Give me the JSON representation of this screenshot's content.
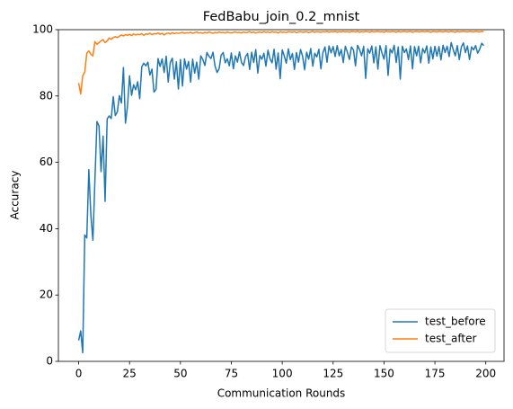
{
  "chart_data": {
    "type": "line",
    "title": "FedBabu_join_0.2_mnist",
    "x_label": "Communication Rounds",
    "y_label": "Accuracy",
    "x": [
      0,
      1,
      2,
      3,
      4,
      5,
      6,
      7,
      8,
      9,
      10,
      11,
      12,
      13,
      14,
      15,
      16,
      17,
      18,
      19,
      20,
      21,
      22,
      23,
      24,
      25,
      26,
      27,
      28,
      29,
      30,
      31,
      32,
      33,
      34,
      35,
      36,
      37,
      38,
      39,
      40,
      41,
      42,
      43,
      44,
      45,
      46,
      47,
      48,
      49,
      50,
      51,
      52,
      53,
      54,
      55,
      56,
      57,
      58,
      59,
      60,
      61,
      62,
      63,
      64,
      65,
      66,
      67,
      68,
      69,
      70,
      71,
      72,
      73,
      74,
      75,
      76,
      77,
      78,
      79,
      80,
      81,
      82,
      83,
      84,
      85,
      86,
      87,
      88,
      89,
      90,
      91,
      92,
      93,
      94,
      95,
      96,
      97,
      98,
      99,
      100,
      101,
      102,
      103,
      104,
      105,
      106,
      107,
      108,
      109,
      110,
      111,
      112,
      113,
      114,
      115,
      116,
      117,
      118,
      119,
      120,
      121,
      122,
      123,
      124,
      125,
      126,
      127,
      128,
      129,
      130,
      131,
      132,
      133,
      134,
      135,
      136,
      137,
      138,
      139,
      140,
      141,
      142,
      143,
      144,
      145,
      146,
      147,
      148,
      149,
      150,
      151,
      152,
      153,
      154,
      155,
      156,
      157,
      158,
      159,
      160,
      161,
      162,
      163,
      164,
      165,
      166,
      167,
      168,
      169,
      170,
      171,
      172,
      173,
      174,
      175,
      176,
      177,
      178,
      179,
      180,
      181,
      182,
      183,
      184,
      185,
      186,
      187,
      188,
      189,
      190,
      191,
      192,
      193,
      194,
      195,
      196,
      197,
      198,
      199
    ],
    "series": [
      {
        "name": "test_before",
        "color": "#1f77b4",
        "values": [
          6.3,
          9.2,
          2.6,
          38.1,
          37.2,
          57.8,
          44.1,
          36.5,
          54.9,
          72.3,
          71.0,
          57.2,
          67.9,
          48.2,
          73.1,
          74.0,
          73.2,
          79.8,
          74.1,
          75.2,
          80.1,
          77.9,
          88.6,
          71.8,
          77.0,
          86.1,
          80.2,
          83.4,
          81.9,
          84.3,
          79.2,
          88.8,
          89.9,
          89.1,
          90.2,
          86.3,
          88.1,
          81.2,
          82.0,
          91.3,
          88.9,
          91.2,
          87.1,
          92.0,
          84.2,
          90.1,
          91.4,
          85.1,
          90.3,
          82.1,
          91.0,
          83.0,
          91.2,
          88.1,
          90.4,
          84.2,
          91.1,
          86.9,
          90.2,
          85.1,
          92.1,
          91.0,
          89.2,
          93.1,
          92.0,
          91.3,
          93.2,
          89.0,
          87.1,
          88.2,
          92.3,
          93.1,
          90.0,
          91.2,
          89.1,
          93.0,
          88.2,
          92.1,
          90.2,
          93.3,
          90.1,
          89.2,
          91.9,
          92.8,
          88.0,
          93.2,
          90.1,
          94.0,
          86.9,
          92.2,
          91.1,
          92.9,
          89.0,
          93.8,
          91.2,
          90.0,
          94.1,
          88.1,
          93.0,
          85.2,
          93.9,
          92.1,
          89.9,
          94.2,
          91.0,
          92.8,
          88.0,
          93.1,
          90.2,
          94.0,
          92.0,
          87.9,
          93.2,
          91.1,
          94.3,
          89.0,
          92.9,
          91.8,
          94.1,
          88.2,
          93.1,
          94.8,
          90.2,
          95.1,
          93.0,
          94.9,
          91.9,
          95.2,
          92.1,
          94.0,
          90.1,
          95.0,
          93.2,
          91.0,
          94.8,
          93.9,
          89.1,
          95.3,
          94.0,
          92.1,
          95.0,
          85.3,
          94.2,
          92.9,
          95.1,
          90.0,
          94.8,
          88.1,
          95.2,
          93.0,
          91.1,
          95.2,
          86.2,
          94.1,
          93.0,
          95.3,
          90.1,
          94.8,
          85.1,
          95.0,
          93.1,
          94.2,
          91.0,
          95.1,
          88.2,
          94.9,
          92.1,
          95.0,
          90.0,
          94.3,
          93.0,
          95.1,
          89.9,
          94.8,
          91.2,
          95.0,
          92.0,
          94.9,
          90.9,
          95.3,
          93.1,
          95.0,
          91.9,
          96.1,
          94.0,
          92.1,
          95.2,
          91.0,
          94.8,
          96.0,
          93.1,
          95.1,
          91.0,
          94.8,
          93.9,
          95.2,
          92.9,
          94.1,
          95.9,
          95.2
        ]
      },
      {
        "name": "test_after",
        "color": "#ff7f0e",
        "values": [
          83.9,
          80.6,
          86.1,
          87.2,
          92.9,
          93.6,
          92.6,
          92.1,
          96.4,
          95.6,
          96.1,
          96.6,
          97.0,
          96.1,
          96.6,
          97.5,
          97.1,
          97.6,
          97.9,
          97.6,
          98.0,
          98.4,
          98.1,
          98.5,
          98.3,
          98.6,
          98.2,
          98.7,
          98.4,
          98.6,
          98.5,
          98.8,
          98.3,
          98.7,
          98.6,
          98.9,
          98.5,
          98.8,
          98.7,
          99.0,
          98.6,
          98.9,
          98.4,
          98.8,
          99.0,
          98.7,
          99.1,
          98.8,
          99.0,
          98.9,
          99.0,
          99.2,
          98.9,
          99.1,
          99.0,
          99.2,
          98.9,
          99.1,
          99.3,
          99.0,
          99.1,
          98.9,
          99.2,
          99.0,
          99.3,
          99.1,
          98.9,
          99.2,
          99.0,
          99.3,
          99.1,
          99.2,
          99.0,
          99.3,
          99.1,
          99.0,
          99.2,
          99.3,
          99.1,
          99.2,
          99.0,
          99.3,
          99.1,
          99.2,
          99.4,
          99.1,
          99.3,
          99.0,
          99.2,
          99.3,
          99.1,
          99.4,
          99.2,
          99.3,
          99.1,
          99.4,
          99.2,
          99.3,
          99.0,
          99.4,
          99.2,
          99.3,
          99.1,
          99.4,
          99.3,
          99.2,
          99.4,
          99.1,
          99.3,
          99.4,
          99.2,
          99.3,
          99.4,
          99.1,
          99.3,
          99.5,
          99.2,
          99.4,
          99.3,
          99.2,
          99.4,
          99.3,
          99.5,
          99.2,
          99.4,
          99.3,
          99.5,
          99.2,
          99.4,
          99.3,
          99.5,
          99.3,
          99.4,
          99.2,
          99.5,
          99.4,
          99.3,
          99.5,
          99.2,
          99.4,
          99.3,
          99.5,
          99.4,
          99.2,
          99.5,
          99.3,
          99.4,
          99.5,
          99.3,
          99.4,
          99.2,
          99.5,
          99.4,
          99.3,
          99.5,
          99.4,
          99.2,
          99.5,
          99.3,
          99.4,
          99.5,
          99.3,
          99.4,
          99.5,
          99.2,
          99.4,
          99.5,
          99.3,
          99.4,
          99.5,
          99.3,
          99.5,
          99.4,
          99.2,
          99.5,
          99.4,
          99.3,
          99.5,
          99.4,
          99.3,
          99.5,
          99.4,
          99.3,
          99.5,
          99.4,
          99.2,
          99.5,
          99.3,
          99.4,
          99.5,
          99.4,
          99.3,
          99.5,
          99.4,
          99.3,
          99.5,
          99.4,
          99.3,
          99.5,
          99.4
        ]
      }
    ],
    "xlim": [
      -9.95,
      208.95
    ],
    "ylim": [
      0,
      100
    ],
    "xticks": [
      0,
      25,
      50,
      75,
      100,
      125,
      150,
      175,
      200
    ],
    "yticks": [
      0,
      20,
      40,
      60,
      80,
      100
    ],
    "grid": false,
    "legend": "lower right"
  }
}
